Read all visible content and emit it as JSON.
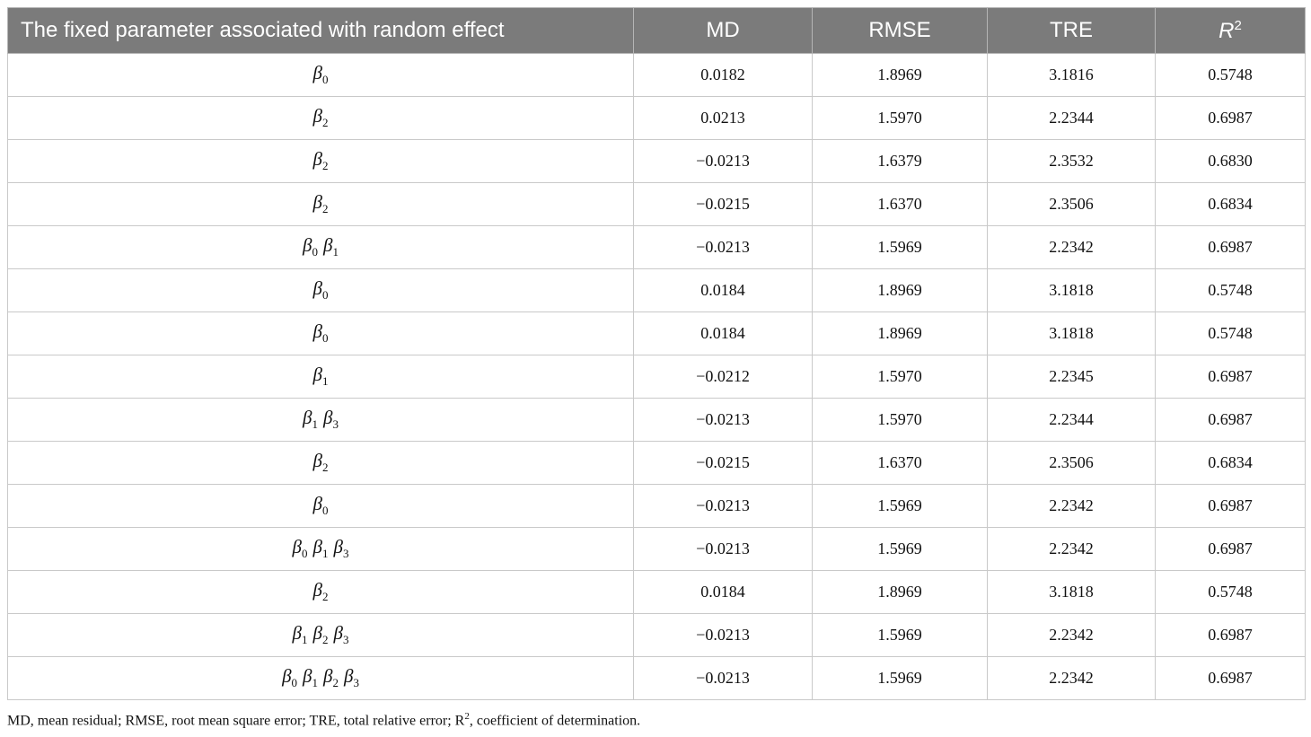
{
  "headers": {
    "param": "The fixed parameter associated with random effect",
    "md": "MD",
    "rmse": "RMSE",
    "tre": "TRE",
    "r2_base": "R",
    "r2_sup": "2"
  },
  "rows": [
    {
      "params": [
        "0"
      ],
      "md": "0.0182",
      "rmse": "1.8969",
      "tre": "3.1816",
      "r2": "0.5748"
    },
    {
      "params": [
        "2"
      ],
      "md": "0.0213",
      "rmse": "1.5970",
      "tre": "2.2344",
      "r2": "0.6987"
    },
    {
      "params": [
        "2"
      ],
      "md": "−0.0213",
      "rmse": "1.6379",
      "tre": "2.3532",
      "r2": "0.6830"
    },
    {
      "params": [
        "2"
      ],
      "md": "−0.0215",
      "rmse": "1.6370",
      "tre": "2.3506",
      "r2": "0.6834"
    },
    {
      "params": [
        "0",
        "1"
      ],
      "md": "−0.0213",
      "rmse": "1.5969",
      "tre": "2.2342",
      "r2": "0.6987"
    },
    {
      "params": [
        "0"
      ],
      "md": "0.0184",
      "rmse": "1.8969",
      "tre": "3.1818",
      "r2": "0.5748"
    },
    {
      "params": [
        "0"
      ],
      "md": "0.0184",
      "rmse": "1.8969",
      "tre": "3.1818",
      "r2": "0.5748"
    },
    {
      "params": [
        "1"
      ],
      "md": "−0.0212",
      "rmse": "1.5970",
      "tre": "2.2345",
      "r2": "0.6987"
    },
    {
      "params": [
        "1",
        "3"
      ],
      "md": "−0.0213",
      "rmse": "1.5970",
      "tre": "2.2344",
      "r2": "0.6987"
    },
    {
      "params": [
        "2"
      ],
      "md": "−0.0215",
      "rmse": "1.6370",
      "tre": "2.3506",
      "r2": "0.6834"
    },
    {
      "params": [
        "0"
      ],
      "md": "−0.0213",
      "rmse": "1.5969",
      "tre": "2.2342",
      "r2": "0.6987"
    },
    {
      "params": [
        "0",
        "1",
        "3"
      ],
      "md": "−0.0213",
      "rmse": "1.5969",
      "tre": "2.2342",
      "r2": "0.6987"
    },
    {
      "params": [
        "2"
      ],
      "md": "0.0184",
      "rmse": "1.8969",
      "tre": "3.1818",
      "r2": "0.5748"
    },
    {
      "params": [
        "1",
        "2",
        "3"
      ],
      "md": "−0.0213",
      "rmse": "1.5969",
      "tre": "2.2342",
      "r2": "0.6987"
    },
    {
      "params": [
        "0",
        "1",
        "2",
        "3"
      ],
      "md": "−0.0213",
      "rmse": "1.5969",
      "tre": "2.2342",
      "r2": "0.6987"
    }
  ],
  "beta_symbol": "β",
  "footnote": {
    "before": "MD, mean residual; RMSE, root mean square error; TRE, total relative error; R",
    "sup": "2",
    "after": ", coefficient of determination."
  }
}
